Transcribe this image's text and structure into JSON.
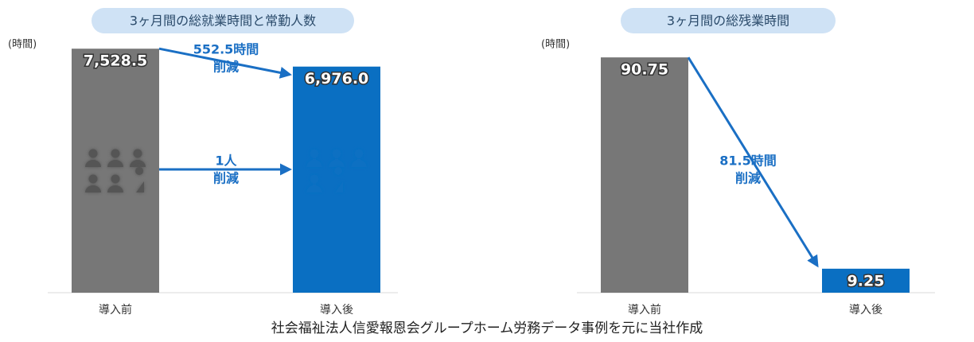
{
  "chart_data": [
    {
      "type": "bar",
      "title": "3ヶ月間の総就業時間と常勤人数",
      "y_label": "(時間)",
      "categories": [
        "導入前",
        "導入後"
      ],
      "values": [
        7528.5,
        6976.0
      ],
      "value_labels": [
        "7,528.5",
        "6,976.0"
      ],
      "colors": [
        "#777777",
        "#0a6fc2"
      ],
      "ylim": [
        0,
        8000
      ],
      "annotations": [
        {
          "lines": [
            "552.5時間",
            "削減"
          ]
        },
        {
          "lines": [
            "1人",
            "削減"
          ]
        }
      ]
    },
    {
      "type": "bar",
      "title": "3ヶ月間の総残業時間",
      "y_label": "(時間)",
      "categories": [
        "導入前",
        "導入後"
      ],
      "values": [
        90.75,
        9.25
      ],
      "value_labels": [
        "90.75",
        "9.25"
      ],
      "colors": [
        "#777777",
        "#0a6fc2"
      ],
      "ylim": [
        0,
        100
      ],
      "annotations": [
        {
          "lines": [
            "81.5時間",
            "削減"
          ]
        }
      ]
    }
  ],
  "source": "社会福祉法人信愛報恩会グループホーム労務データ事例を元に当社作成"
}
